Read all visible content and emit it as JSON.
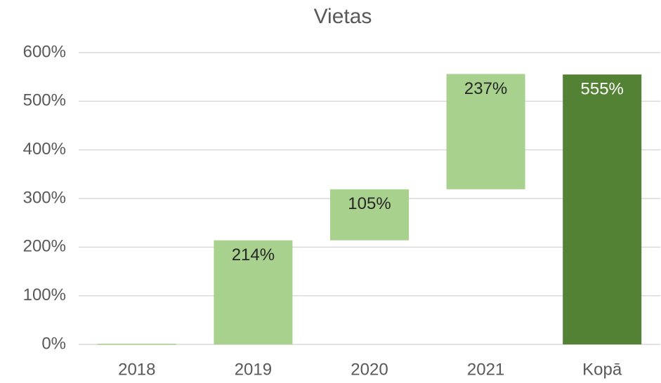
{
  "chart_data": {
    "type": "waterfall",
    "title": "Vietas",
    "categories": [
      "2018",
      "2019",
      "2020",
      "2021",
      "Kopā"
    ],
    "values": [
      0,
      214,
      105,
      237,
      555
    ],
    "value_labels": [
      null,
      "214%",
      "105%",
      "237%",
      "555%"
    ],
    "totals": [
      false,
      false,
      false,
      false,
      true
    ],
    "color": "#a9d18e",
    "total_color": "#548235",
    "ylim": [
      0,
      600
    ],
    "yticks": [
      {
        "value": 0,
        "label": "0%"
      },
      {
        "value": 100,
        "label": "100%"
      },
      {
        "value": 200,
        "label": "200%"
      },
      {
        "value": 300,
        "label": "300%"
      },
      {
        "value": 400,
        "label": "400%"
      },
      {
        "value": 500,
        "label": "500%"
      },
      {
        "value": 600,
        "label": "600%"
      }
    ],
    "grid": true
  }
}
